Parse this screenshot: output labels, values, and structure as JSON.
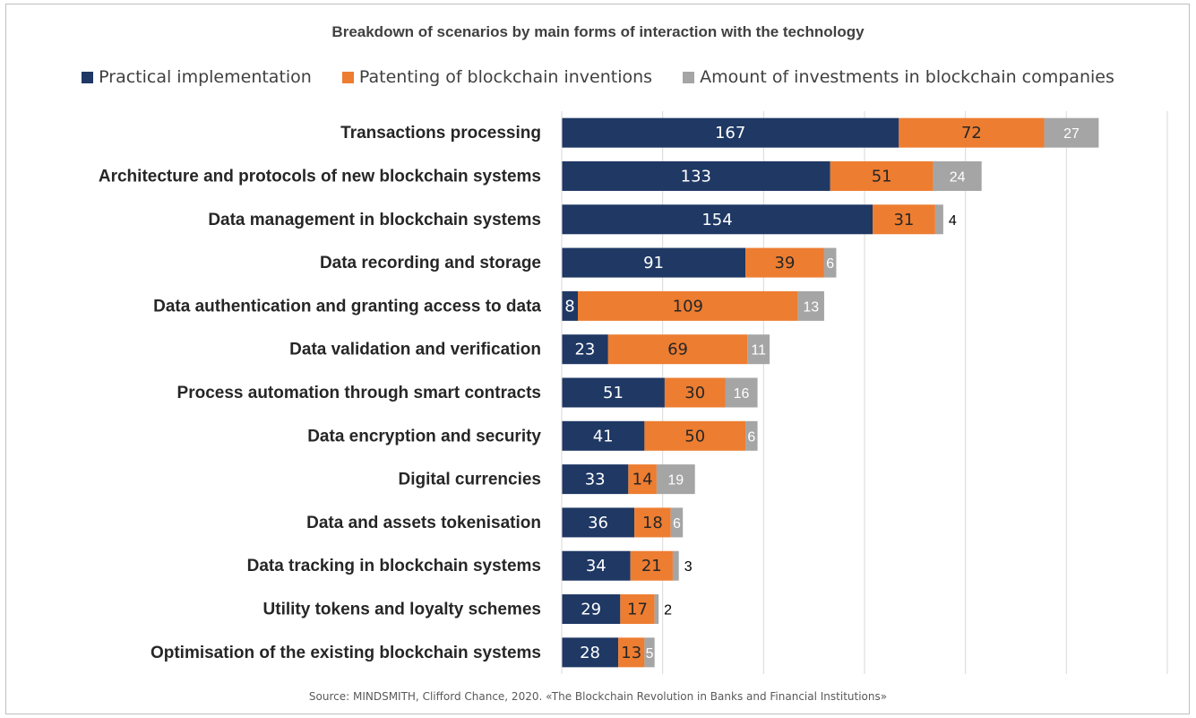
{
  "chart_data": {
    "type": "bar",
    "orientation": "horizontal",
    "stacked": true,
    "title": "Breakdown of scenarios by main forms of interaction with the technology",
    "source": "Source: MINDSMITH, Clifford Chance, 2020. «The Blockchain Revolution in Banks and Financial Institutions»",
    "legend_position": "top",
    "grid": "vertical",
    "xlim": [
      0,
      300
    ],
    "categories": [
      "Transactions processing",
      "Architecture and protocols of new blockchain systems",
      "Data management in blockchain systems",
      "Data recording and storage",
      "Data authentication and granting access to data",
      "Data validation and verification",
      "Process automation through smart contracts",
      "Data encryption and security",
      "Digital currencies",
      "Data and assets tokenisation",
      "Data tracking in blockchain systems",
      "Utility tokens and loyalty schemes",
      "Optimisation of the existing blockchain systems"
    ],
    "series": [
      {
        "name": "Practical implementation",
        "color": "#1f3864",
        "values": [
          167,
          133,
          154,
          91,
          8,
          23,
          51,
          41,
          33,
          36,
          34,
          29,
          28
        ]
      },
      {
        "name": "Patenting of blockchain inventions",
        "color": "#ed7d31",
        "values": [
          72,
          51,
          31,
          39,
          109,
          69,
          30,
          50,
          14,
          18,
          21,
          17,
          13
        ]
      },
      {
        "name": "Amount of investments in blockchain companies",
        "color": "#a5a5a5",
        "values": [
          27,
          24,
          4,
          6,
          13,
          11,
          16,
          6,
          19,
          6,
          3,
          2,
          5
        ]
      }
    ]
  }
}
